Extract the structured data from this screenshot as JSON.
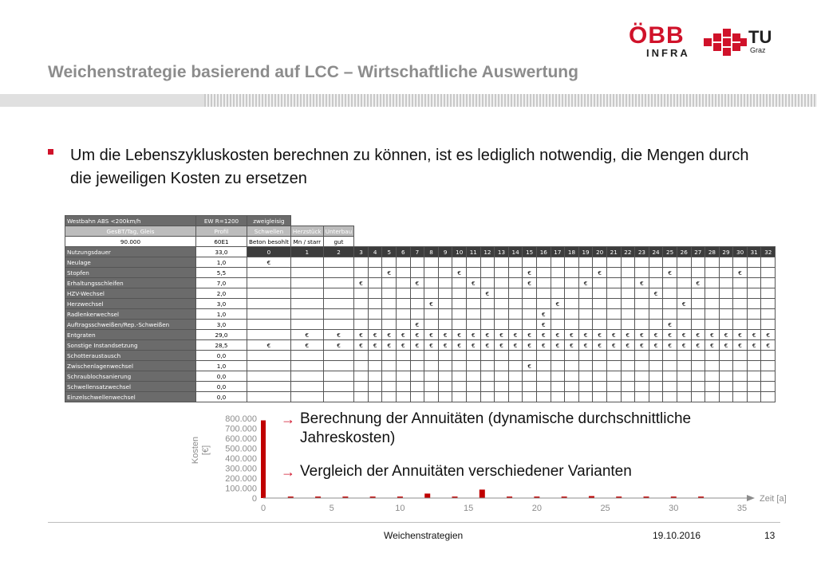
{
  "logos": {
    "obb": "ÖBB",
    "infra": "INFRA",
    "tu": "TU",
    "graz": "Graz",
    "colors": {
      "red": "#d0122a",
      "dark": "#222222"
    }
  },
  "title": "Weichenstrategie basierend auf LCC – Wirtschaftliche Auswertung",
  "bullet": "Um die Lebenszykluskosten berechnen zu können, ist es lediglich notwendig, die Mengen durch die jeweiligen Kosten zu ersetzen",
  "table": {
    "head1": [
      "Westbahn ABS <200km/h",
      "EW R=1200",
      "zweigleisig"
    ],
    "head2": [
      "GesBT/Tag, Gleis",
      "Profil",
      "Schwellen",
      "Herzstück",
      "Unterbau"
    ],
    "head3": [
      "90.000",
      "60E1",
      "Beton besohlt",
      "Mn / starr",
      "gut"
    ],
    "nd_label": "Nutzungsdauer",
    "nd_value": "33,0",
    "years": [
      "0",
      "1",
      "2",
      "3",
      "4",
      "5",
      "6",
      "7",
      "8",
      "9",
      "10",
      "11",
      "12",
      "13",
      "14",
      "15",
      "16",
      "17",
      "18",
      "19",
      "20",
      "21",
      "22",
      "23",
      "24",
      "25",
      "26",
      "27",
      "28",
      "29",
      "30",
      "31",
      "32"
    ],
    "euro": "€",
    "rows": [
      {
        "label": "Neulage",
        "value": "1,0",
        "cells": [
          0
        ]
      },
      {
        "label": "Stopfen",
        "value": "5,5",
        "cells": [
          5,
          10,
          15,
          20,
          25,
          30
        ]
      },
      {
        "label": "Erhaltungsschleifen",
        "value": "7,0",
        "cells": [
          3,
          7,
          11,
          15,
          19,
          23,
          27
        ]
      },
      {
        "label": "HZV-Wechsel",
        "value": "2,0",
        "cells": [
          12,
          24
        ]
      },
      {
        "label": "Herzwechsel",
        "value": "3,0",
        "cells": [
          8,
          17,
          26
        ]
      },
      {
        "label": "Radlenkerwechsel",
        "value": "1,0",
        "cells": [
          16
        ]
      },
      {
        "label": "Auftragsschweißen/Rep.-Schweißen",
        "value": "3,0",
        "cells": [
          7,
          16,
          25
        ]
      },
      {
        "label": "Entgraten",
        "value": "29,0",
        "cells": [
          1,
          2,
          3,
          4,
          5,
          6,
          7,
          8,
          9,
          10,
          11,
          12,
          13,
          14,
          15,
          16,
          17,
          18,
          19,
          20,
          21,
          22,
          23,
          24,
          25,
          26,
          27,
          28,
          29,
          30,
          31,
          32
        ]
      },
      {
        "label": "Sonstige Instandsetzung",
        "value": "28,5",
        "cells": [
          0,
          1,
          2,
          3,
          4,
          5,
          6,
          7,
          8,
          9,
          10,
          11,
          12,
          13,
          14,
          15,
          16,
          17,
          18,
          19,
          20,
          21,
          22,
          23,
          24,
          25,
          26,
          27,
          28,
          29,
          30,
          31,
          32
        ]
      },
      {
        "label": "Schotteraustausch",
        "value": "0,0",
        "cells": []
      },
      {
        "label": "Zwischenlagenwechsel",
        "value": "1,0",
        "cells": [
          15
        ]
      },
      {
        "label": "Schraublochsanierung",
        "value": "0,0",
        "cells": []
      },
      {
        "label": "Schwellensatzwechsel",
        "value": "0,0",
        "cells": []
      },
      {
        "label": "Einzelschwellenwechsel",
        "value": "0,0",
        "cells": []
      }
    ]
  },
  "chart_data": {
    "type": "bar",
    "ylabel": "Kosten [€]",
    "xlabel": "Zeit [a]",
    "yticks": [
      "800.000",
      "700.000",
      "600.000",
      "500.000",
      "400.000",
      "300.000",
      "200.000",
      "100.000",
      "0"
    ],
    "ytick_values": [
      800000,
      700000,
      600000,
      500000,
      400000,
      300000,
      200000,
      100000,
      0
    ],
    "xticks": [
      "0",
      "5",
      "10",
      "15",
      "20",
      "25",
      "30",
      "35"
    ],
    "xtick_values": [
      0,
      5,
      10,
      15,
      20,
      25,
      30,
      35
    ],
    "xlim": [
      0,
      35
    ],
    "ylim": [
      0,
      800000
    ],
    "color": "#c00000",
    "x": [
      0,
      2,
      4,
      6,
      8,
      10,
      12,
      14,
      16,
      18,
      20,
      22,
      24,
      26,
      28,
      30,
      32
    ],
    "values": [
      780000,
      15000,
      15000,
      15000,
      15000,
      15000,
      45000,
      15000,
      85000,
      15000,
      15000,
      15000,
      20000,
      15000,
      15000,
      15000,
      15000
    ]
  },
  "arrows": [
    {
      "text": "Berechnung der Annuitäten (dynamische durchschnittliche Jahreskosten)"
    },
    {
      "text": "Vergleich der Annuitäten verschiedener Varianten"
    }
  ],
  "arrow_glyph": "→",
  "footer": {
    "center": "Weichenstrategien",
    "date": "19.10.2016",
    "page": "13"
  }
}
